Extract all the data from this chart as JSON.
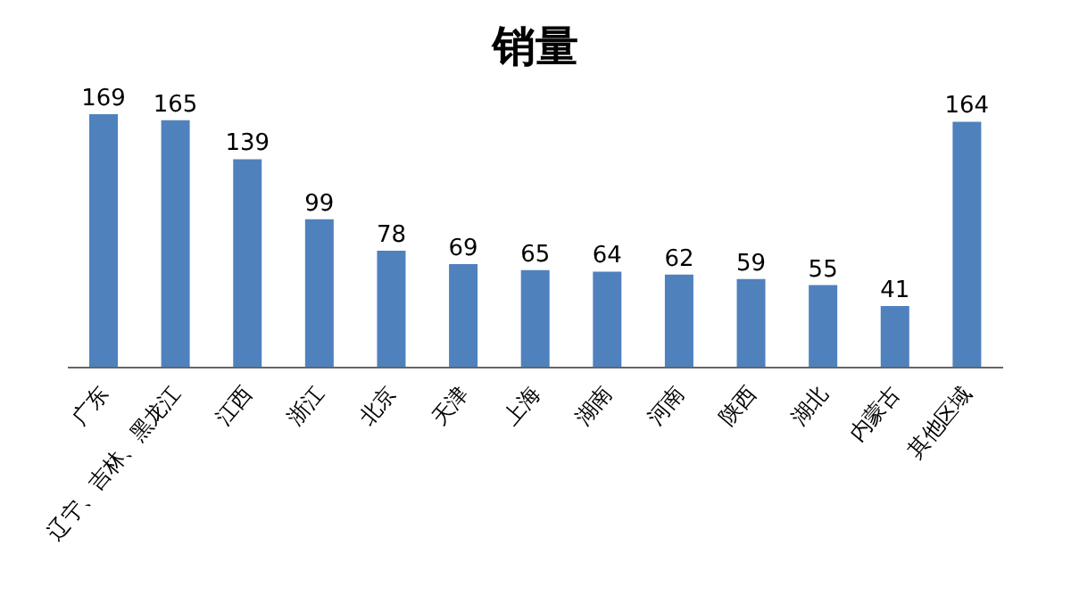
{
  "chart_data": {
    "type": "bar",
    "title": "销量",
    "categories": [
      "广东",
      "辽宁、吉林、黑龙江",
      "江西",
      "浙江",
      "北京",
      "天津",
      "上海",
      "湖南",
      "河南",
      "陕西",
      "湖北",
      "内蒙古",
      "其他区域"
    ],
    "values": [
      169,
      165,
      139,
      99,
      78,
      69,
      65,
      64,
      62,
      59,
      55,
      41,
      164
    ],
    "color": "#4f81bd",
    "data_labels": true,
    "grid": false,
    "legend": false
  }
}
